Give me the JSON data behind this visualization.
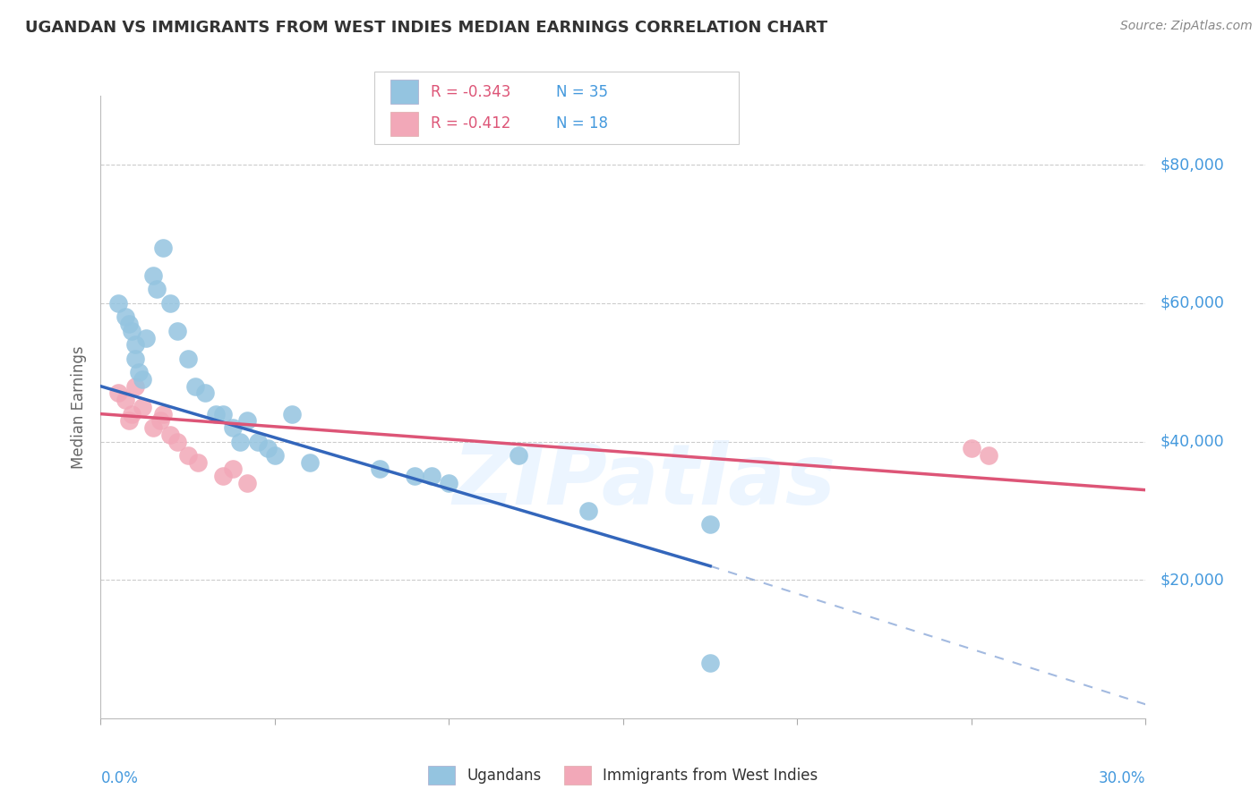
{
  "title": "UGANDAN VS IMMIGRANTS FROM WEST INDIES MEDIAN EARNINGS CORRELATION CHART",
  "source": "Source: ZipAtlas.com",
  "ylabel": "Median Earnings",
  "xmin": 0.0,
  "xmax": 0.3,
  "ymin": 0,
  "ymax": 90000,
  "blue_R": -0.343,
  "blue_N": 35,
  "pink_R": -0.412,
  "pink_N": 18,
  "blue_color": "#94C4E0",
  "pink_color": "#F2A8B8",
  "blue_line_color": "#3366BB",
  "pink_line_color": "#DD5577",
  "blue_line_x0": 0.0,
  "blue_line_y0": 48000,
  "blue_line_x1": 0.175,
  "blue_line_y1": 22000,
  "blue_line_dash_x1": 0.3,
  "blue_line_dash_y1": 2000,
  "pink_line_x0": 0.0,
  "pink_line_y0": 44000,
  "pink_line_x1": 0.3,
  "pink_line_y1": 33000,
  "blue_points_x": [
    0.005,
    0.007,
    0.008,
    0.009,
    0.01,
    0.01,
    0.011,
    0.012,
    0.013,
    0.015,
    0.016,
    0.018,
    0.02,
    0.022,
    0.025,
    0.027,
    0.03,
    0.033,
    0.035,
    0.038,
    0.04,
    0.042,
    0.045,
    0.048,
    0.05,
    0.055,
    0.06,
    0.08,
    0.09,
    0.095,
    0.1,
    0.12,
    0.14,
    0.175,
    0.175
  ],
  "blue_points_y": [
    60000,
    58000,
    57000,
    56000,
    54000,
    52000,
    50000,
    49000,
    55000,
    64000,
    62000,
    68000,
    60000,
    56000,
    52000,
    48000,
    47000,
    44000,
    44000,
    42000,
    40000,
    43000,
    40000,
    39000,
    38000,
    44000,
    37000,
    36000,
    35000,
    35000,
    34000,
    38000,
    30000,
    28000,
    8000
  ],
  "pink_points_x": [
    0.005,
    0.007,
    0.008,
    0.009,
    0.01,
    0.012,
    0.015,
    0.017,
    0.018,
    0.02,
    0.022,
    0.025,
    0.028,
    0.035,
    0.038,
    0.042,
    0.25,
    0.255
  ],
  "pink_points_y": [
    47000,
    46000,
    43000,
    44000,
    48000,
    45000,
    42000,
    43000,
    44000,
    41000,
    40000,
    38000,
    37000,
    35000,
    36000,
    34000,
    39000,
    38000
  ],
  "watermark": "ZIPatlas",
  "bg_color": "#FFFFFF",
  "grid_color": "#CCCCCC",
  "title_color": "#333333",
  "axis_color": "#4499DD",
  "yticks": [
    0,
    20000,
    40000,
    60000,
    80000
  ],
  "ytick_labels": [
    "",
    "$20,000",
    "$40,000",
    "$60,000",
    "$80,000"
  ]
}
